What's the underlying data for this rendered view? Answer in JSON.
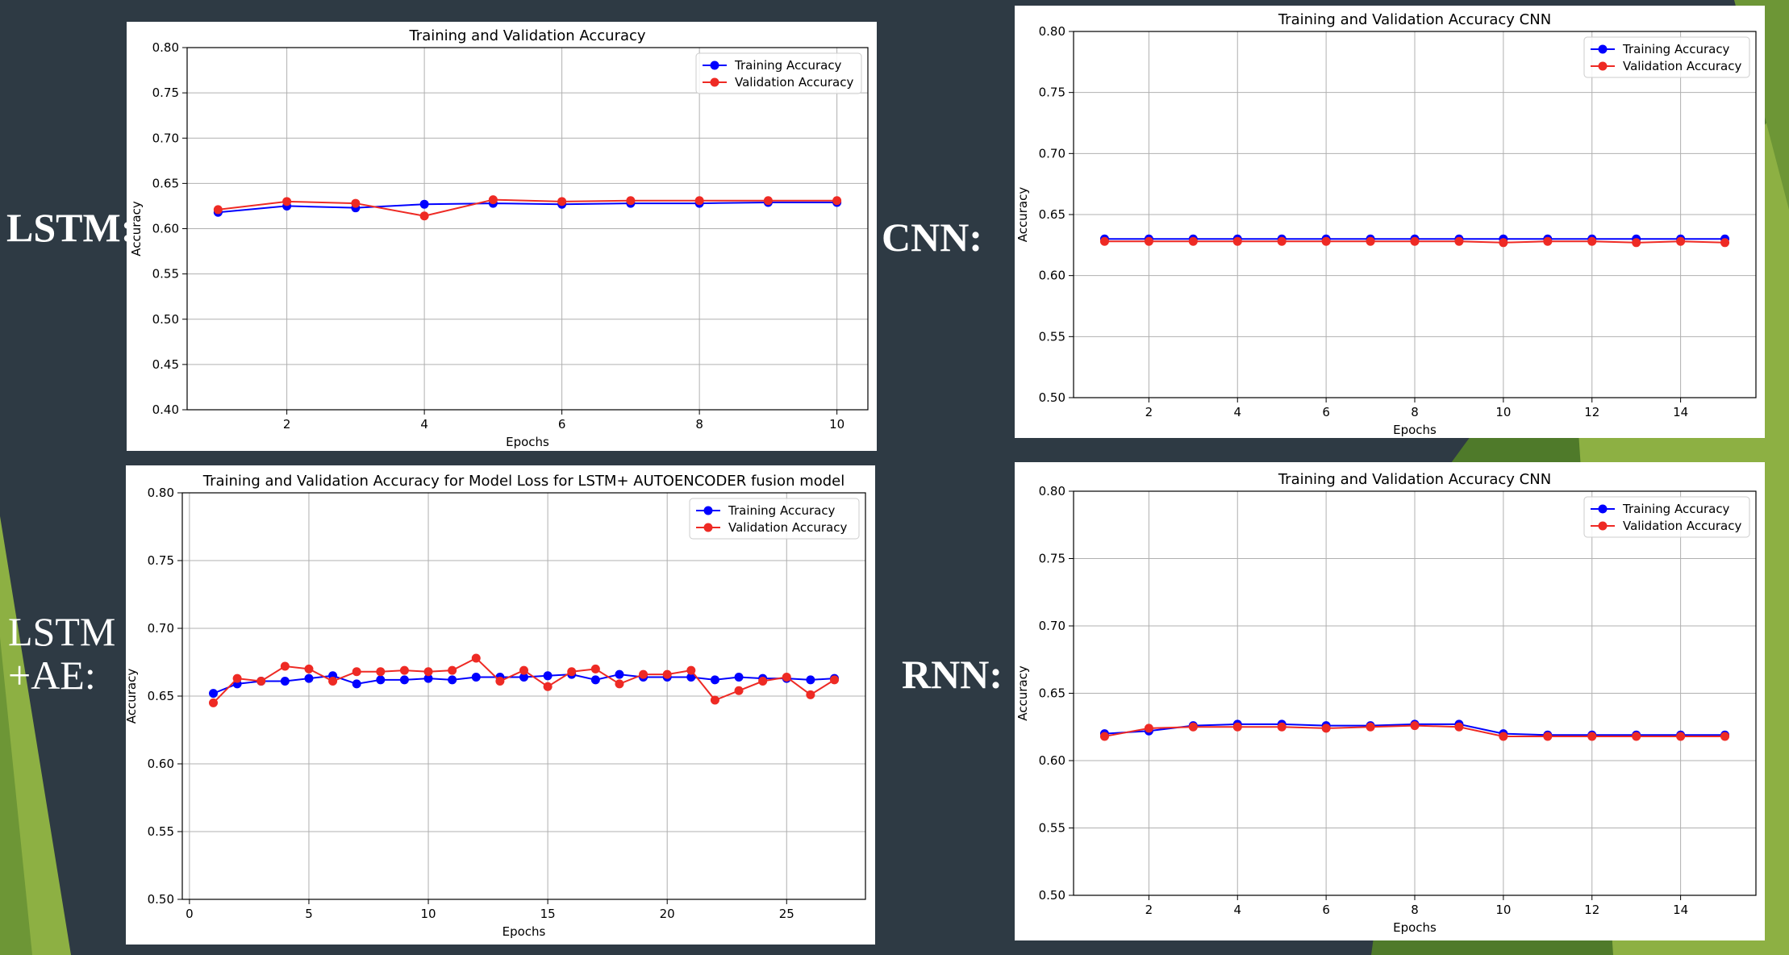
{
  "labels": {
    "lstm": "LSTM:",
    "cnn": "CNN:",
    "lstm_ae_line1": "LSTM",
    "lstm_ae_line2": "+AE:",
    "rnn": "RNN:"
  },
  "colors": {
    "background": "#2e3a44",
    "accent_green": "#8db043",
    "accent_dark_green": "#4f7a2a",
    "training": "#0000ff",
    "validation": "#ee2a24"
  },
  "chart_data": [
    {
      "type": "line",
      "title": "Training and Validation Accuracy",
      "xlabel": "Epochs",
      "ylabel": "Accuracy",
      "x": [
        1,
        2,
        3,
        4,
        5,
        6,
        7,
        8,
        9,
        10
      ],
      "xlim": [
        0.55,
        10.45
      ],
      "xticks": [
        2,
        4,
        6,
        8,
        10
      ],
      "ylim": [
        0.4,
        0.8
      ],
      "yticks": [
        0.4,
        0.45,
        0.5,
        0.55,
        0.6,
        0.65,
        0.7,
        0.75,
        0.8
      ],
      "grid": true,
      "legend": "top-right",
      "series": [
        {
          "name": "Training Accuracy",
          "color": "#0000ff",
          "values": [
            0.618,
            0.625,
            0.623,
            0.627,
            0.628,
            0.627,
            0.628,
            0.628,
            0.629,
            0.629
          ]
        },
        {
          "name": "Validation Accuracy",
          "color": "#ee2a24",
          "values": [
            0.621,
            0.63,
            0.628,
            0.614,
            0.632,
            0.63,
            0.631,
            0.631,
            0.631,
            0.631
          ]
        }
      ]
    },
    {
      "type": "line",
      "title": "Training and Validation Accuracy CNN",
      "xlabel": "Epochs",
      "ylabel": "Accuracy",
      "x": [
        1,
        2,
        3,
        4,
        5,
        6,
        7,
        8,
        9,
        10,
        11,
        12,
        13,
        14,
        15
      ],
      "xlim": [
        0.3,
        15.7
      ],
      "xticks": [
        2,
        4,
        6,
        8,
        10,
        12,
        14
      ],
      "ylim": [
        0.5,
        0.8
      ],
      "yticks": [
        0.5,
        0.55,
        0.6,
        0.65,
        0.7,
        0.75,
        0.8
      ],
      "grid": true,
      "legend": "top-right",
      "series": [
        {
          "name": "Training Accuracy",
          "color": "#0000ff",
          "values": [
            0.63,
            0.63,
            0.63,
            0.63,
            0.63,
            0.63,
            0.63,
            0.63,
            0.63,
            0.63,
            0.63,
            0.63,
            0.63,
            0.63,
            0.63
          ]
        },
        {
          "name": "Validation Accuracy",
          "color": "#ee2a24",
          "values": [
            0.628,
            0.628,
            0.628,
            0.628,
            0.628,
            0.628,
            0.628,
            0.628,
            0.628,
            0.627,
            0.628,
            0.628,
            0.627,
            0.628,
            0.627
          ]
        }
      ]
    },
    {
      "type": "line",
      "title": "Training and Validation Accuracy for Model Loss for LSTM+ AUTOENCODER fusion model",
      "xlabel": "Epochs",
      "ylabel": "Accuracy",
      "x": [
        1,
        2,
        3,
        4,
        5,
        6,
        7,
        8,
        9,
        10,
        11,
        12,
        13,
        14,
        15,
        16,
        17,
        18,
        19,
        20,
        21,
        22,
        23,
        24,
        25,
        26,
        27
      ],
      "xlim": [
        -0.3,
        28.3
      ],
      "xticks": [
        0,
        5,
        10,
        15,
        20,
        25
      ],
      "ylim": [
        0.5,
        0.8
      ],
      "yticks": [
        0.5,
        0.55,
        0.6,
        0.65,
        0.7,
        0.75,
        0.8
      ],
      "grid": true,
      "legend": "top-right",
      "series": [
        {
          "name": "Training Accuracy",
          "color": "#0000ff",
          "values": [
            0.652,
            0.659,
            0.661,
            0.661,
            0.663,
            0.665,
            0.659,
            0.662,
            0.662,
            0.663,
            0.662,
            0.664,
            0.664,
            0.664,
            0.665,
            0.666,
            0.662,
            0.666,
            0.664,
            0.664,
            0.664,
            0.662,
            0.664,
            0.663,
            0.663,
            0.662,
            0.663
          ]
        },
        {
          "name": "Validation Accuracy",
          "color": "#ee2a24",
          "values": [
            0.645,
            0.663,
            0.661,
            0.672,
            0.67,
            0.661,
            0.668,
            0.668,
            0.669,
            0.668,
            0.669,
            0.678,
            0.661,
            0.669,
            0.657,
            0.668,
            0.67,
            0.659,
            0.666,
            0.666,
            0.669,
            0.647,
            0.654,
            0.661,
            0.664,
            0.651,
            0.662
          ]
        }
      ]
    },
    {
      "type": "line",
      "title": "Training and Validation Accuracy CNN",
      "xlabel": "Epochs",
      "ylabel": "Accuracy",
      "x": [
        1,
        2,
        3,
        4,
        5,
        6,
        7,
        8,
        9,
        10,
        11,
        12,
        13,
        14,
        15
      ],
      "xlim": [
        0.3,
        15.7
      ],
      "xticks": [
        2,
        4,
        6,
        8,
        10,
        12,
        14
      ],
      "ylim": [
        0.5,
        0.8
      ],
      "yticks": [
        0.5,
        0.55,
        0.6,
        0.65,
        0.7,
        0.75,
        0.8
      ],
      "grid": true,
      "legend": "top-right",
      "series": [
        {
          "name": "Training Accuracy",
          "color": "#0000ff",
          "values": [
            0.62,
            0.622,
            0.626,
            0.627,
            0.627,
            0.626,
            0.626,
            0.627,
            0.627,
            0.62,
            0.619,
            0.619,
            0.619,
            0.619,
            0.619
          ]
        },
        {
          "name": "Validation Accuracy",
          "color": "#ee2a24",
          "values": [
            0.618,
            0.624,
            0.625,
            0.625,
            0.625,
            0.624,
            0.625,
            0.626,
            0.625,
            0.618,
            0.618,
            0.618,
            0.618,
            0.618,
            0.618
          ]
        }
      ]
    }
  ]
}
